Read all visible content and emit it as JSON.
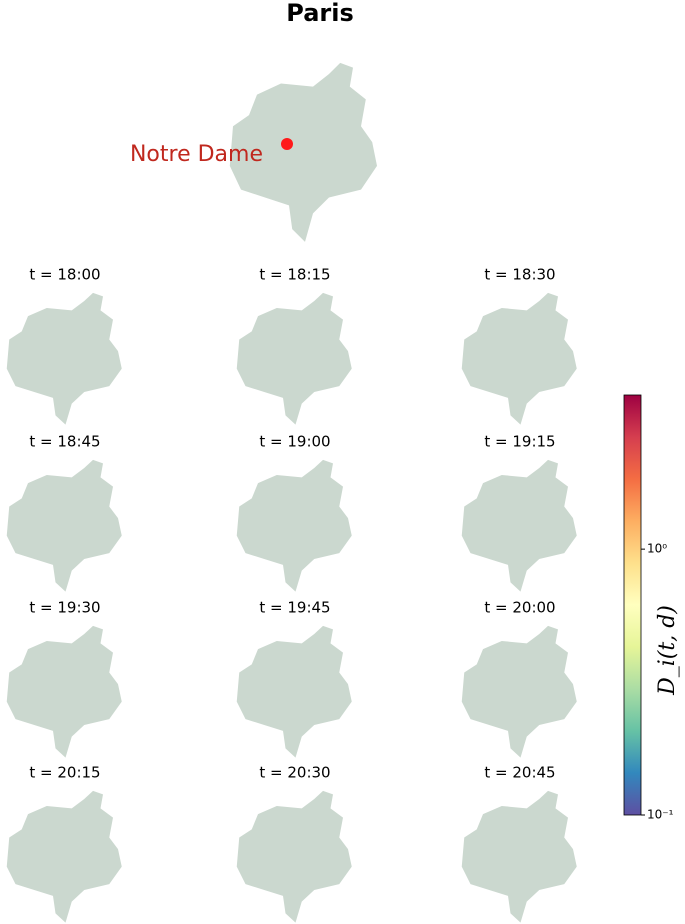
{
  "title": "Paris",
  "annotation": "Notre Dame",
  "panels": [
    {
      "label": "t = 18:00"
    },
    {
      "label": "t = 18:15"
    },
    {
      "label": "t = 18:30"
    },
    {
      "label": "t = 18:45"
    },
    {
      "label": "t = 19:00"
    },
    {
      "label": "t = 19:15"
    },
    {
      "label": "t = 19:30"
    },
    {
      "label": "t = 19:45"
    },
    {
      "label": "t = 20:00"
    },
    {
      "label": "t = 20:15"
    },
    {
      "label": "t = 20:30"
    },
    {
      "label": "t = 20:45"
    }
  ],
  "colorbar": {
    "label": "D_i(t, d)",
    "log": true,
    "lim": [
      0.1,
      3.8
    ],
    "ticks": [
      {
        "value": 1,
        "label": "10⁰"
      },
      {
        "value": 0.1,
        "label": "10⁻¹"
      }
    ]
  }
}
